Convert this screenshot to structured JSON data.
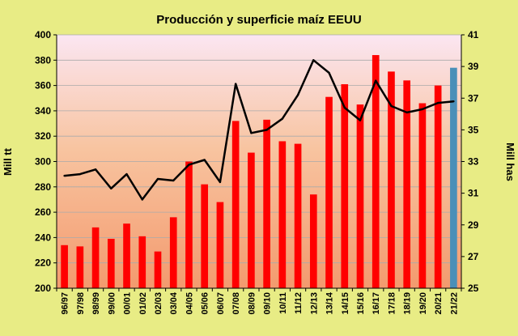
{
  "chart_data": {
    "type": "bar",
    "title": "Producción y superficie maíz EEUU",
    "ylabel_left": "Mill tt",
    "ylabel_right": "Mill has",
    "ylim_left": [
      200,
      400
    ],
    "ylim_right": [
      25,
      41
    ],
    "yticks_left": [
      "200",
      "220",
      "240",
      "260",
      "280",
      "300",
      "320",
      "340",
      "360",
      "380",
      "400"
    ],
    "yticks_right": [
      "25",
      "27",
      "29",
      "31",
      "33",
      "35",
      "37",
      "39",
      "41"
    ],
    "grid": true,
    "categories": [
      "96/97",
      "97/98",
      "98/99",
      "99/00",
      "00/01",
      "01/02",
      "02/03",
      "03/04",
      "04/05",
      "05/06",
      "06/07",
      "07/08",
      "08/09",
      "09/10",
      "10/11",
      "11/12",
      "12/13",
      "13/14",
      "14/15",
      "15/16",
      "16/17",
      "17/18",
      "18/19",
      "19/20",
      "20/21",
      "21/22"
    ],
    "series": [
      {
        "kind": "bar",
        "axis": "left",
        "values": [
          234,
          233,
          248,
          239,
          251,
          241,
          229,
          256,
          300,
          282,
          268,
          332,
          307,
          333,
          316,
          314,
          274,
          351,
          361,
          345,
          384,
          371,
          364,
          346,
          360,
          374
        ],
        "colors": [
          "#ff0000",
          "#ff0000",
          "#ff0000",
          "#ff0000",
          "#ff0000",
          "#ff0000",
          "#ff0000",
          "#ff0000",
          "#ff0000",
          "#ff0000",
          "#ff0000",
          "#ff0000",
          "#ff0000",
          "#ff0000",
          "#ff0000",
          "#ff0000",
          "#ff0000",
          "#ff0000",
          "#ff0000",
          "#ff0000",
          "#ff0000",
          "#ff0000",
          "#ff0000",
          "#ff0000",
          "#ff0000",
          "#4a8fb8"
        ]
      },
      {
        "kind": "line",
        "axis": "right",
        "color": "#000000",
        "values": [
          32.1,
          32.2,
          32.5,
          31.3,
          32.2,
          30.6,
          31.9,
          31.8,
          32.8,
          33.1,
          31.7,
          37.9,
          34.8,
          35.0,
          35.7,
          37.2,
          39.4,
          38.6,
          36.4,
          35.6,
          38.1,
          36.5,
          36.1,
          36.3,
          36.7,
          36.8
        ]
      }
    ]
  },
  "colors": {
    "page_background": "#e8ec85",
    "plot_gradient_top": "#fbe6f2",
    "plot_gradient_mid": "#f8c4a0",
    "plot_gradient_bottom": "#f39a6e",
    "grid": "#aaaaaa"
  }
}
